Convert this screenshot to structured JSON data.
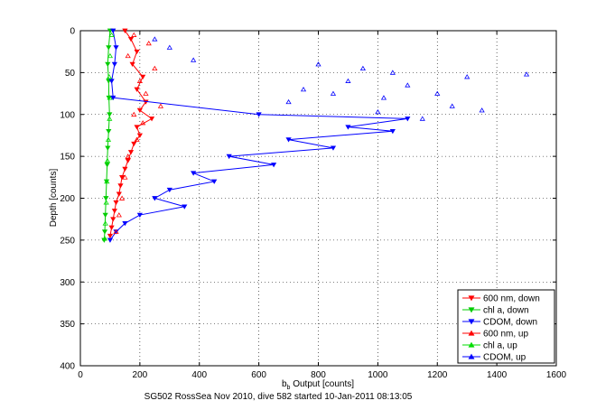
{
  "chart_data": {
    "type": "line",
    "title": "",
    "xlabel": "b",
    "xlabel_sub": "b",
    "xlabel_rest": " Output [counts]",
    "ylabel": "Depth [counts]",
    "xlim": [
      0,
      1600
    ],
    "ylim": [
      0,
      400
    ],
    "y_reversed": true,
    "xticks": [
      "0",
      "200",
      "400",
      "600",
      "800",
      "1000",
      "1200",
      "1400",
      "1600"
    ],
    "yticks": [
      "0",
      "50",
      "100",
      "150",
      "200",
      "250",
      "300",
      "350",
      "400"
    ],
    "grid": true,
    "legend_position": "bottom-right",
    "caption": "SG502 RossSea Nov 2010, dive 582 started 10-Jan-2011 08:13:05",
    "series": [
      {
        "name": "600 nm, down",
        "color": "#ff0000",
        "marker": "triangle-down",
        "style": "line",
        "points": [
          [
            150,
            0
          ],
          [
            170,
            10
          ],
          [
            190,
            25
          ],
          [
            175,
            40
          ],
          [
            210,
            55
          ],
          [
            190,
            70
          ],
          [
            220,
            85
          ],
          [
            200,
            95
          ],
          [
            240,
            105
          ],
          [
            190,
            115
          ],
          [
            200,
            125
          ],
          [
            180,
            135
          ],
          [
            170,
            145
          ],
          [
            160,
            155
          ],
          [
            150,
            165
          ],
          [
            140,
            175
          ],
          [
            135,
            185
          ],
          [
            130,
            195
          ],
          [
            120,
            205
          ],
          [
            115,
            215
          ],
          [
            110,
            225
          ],
          [
            105,
            235
          ],
          [
            100,
            245
          ]
        ]
      },
      {
        "name": "chl a, down",
        "color": "#00cc00",
        "marker": "triangle-down",
        "style": "line",
        "points": [
          [
            100,
            0
          ],
          [
            95,
            20
          ],
          [
            92,
            40
          ],
          [
            95,
            60
          ],
          [
            96,
            80
          ],
          [
            98,
            100
          ],
          [
            95,
            120
          ],
          [
            92,
            140
          ],
          [
            90,
            160
          ],
          [
            88,
            180
          ],
          [
            86,
            200
          ],
          [
            84,
            220
          ],
          [
            82,
            240
          ],
          [
            80,
            250
          ]
        ]
      },
      {
        "name": "CDOM, down",
        "color": "#0000ff",
        "marker": "triangle-down",
        "style": "line",
        "points": [
          [
            110,
            0
          ],
          [
            120,
            20
          ],
          [
            115,
            40
          ],
          [
            105,
            60
          ],
          [
            110,
            80
          ],
          [
            600,
            100
          ],
          [
            1100,
            105
          ],
          [
            900,
            115
          ],
          [
            1050,
            120
          ],
          [
            700,
            130
          ],
          [
            850,
            140
          ],
          [
            500,
            150
          ],
          [
            650,
            160
          ],
          [
            380,
            170
          ],
          [
            450,
            180
          ],
          [
            300,
            190
          ],
          [
            250,
            200
          ],
          [
            350,
            210
          ],
          [
            200,
            220
          ],
          [
            150,
            230
          ],
          [
            120,
            240
          ],
          [
            100,
            250
          ]
        ]
      },
      {
        "name": "600 nm, up",
        "color": "#ff0000",
        "marker": "triangle-up",
        "style": "markers",
        "points": [
          [
            180,
            5
          ],
          [
            230,
            15
          ],
          [
            160,
            30
          ],
          [
            250,
            45
          ],
          [
            200,
            60
          ],
          [
            220,
            75
          ],
          [
            270,
            90
          ],
          [
            180,
            100
          ],
          [
            210,
            110
          ],
          [
            190,
            130
          ],
          [
            160,
            150
          ],
          [
            150,
            175
          ],
          [
            140,
            200
          ],
          [
            130,
            220
          ],
          [
            120,
            240
          ]
        ]
      },
      {
        "name": "chl a, up",
        "color": "#00dd00",
        "marker": "triangle-up",
        "style": "markers",
        "points": [
          [
            105,
            5
          ],
          [
            100,
            30
          ],
          [
            97,
            55
          ],
          [
            99,
            80
          ],
          [
            98,
            105
          ],
          [
            94,
            130
          ],
          [
            91,
            155
          ],
          [
            89,
            180
          ],
          [
            87,
            205
          ],
          [
            84,
            230
          ],
          [
            82,
            248
          ]
        ]
      },
      {
        "name": "CDOM, up",
        "color": "#0000ff",
        "marker": "triangle-up",
        "style": "markers",
        "points": [
          [
            250,
            10
          ],
          [
            300,
            20
          ],
          [
            380,
            35
          ],
          [
            800,
            40
          ],
          [
            950,
            45
          ],
          [
            1050,
            50
          ],
          [
            1300,
            55
          ],
          [
            1500,
            52
          ],
          [
            900,
            60
          ],
          [
            1100,
            65
          ],
          [
            750,
            70
          ],
          [
            850,
            75
          ],
          [
            1200,
            75
          ],
          [
            1020,
            80
          ],
          [
            700,
            85
          ],
          [
            1350,
            95
          ],
          [
            1000,
            97
          ],
          [
            1150,
            105
          ],
          [
            1250,
            90
          ]
        ]
      }
    ]
  }
}
